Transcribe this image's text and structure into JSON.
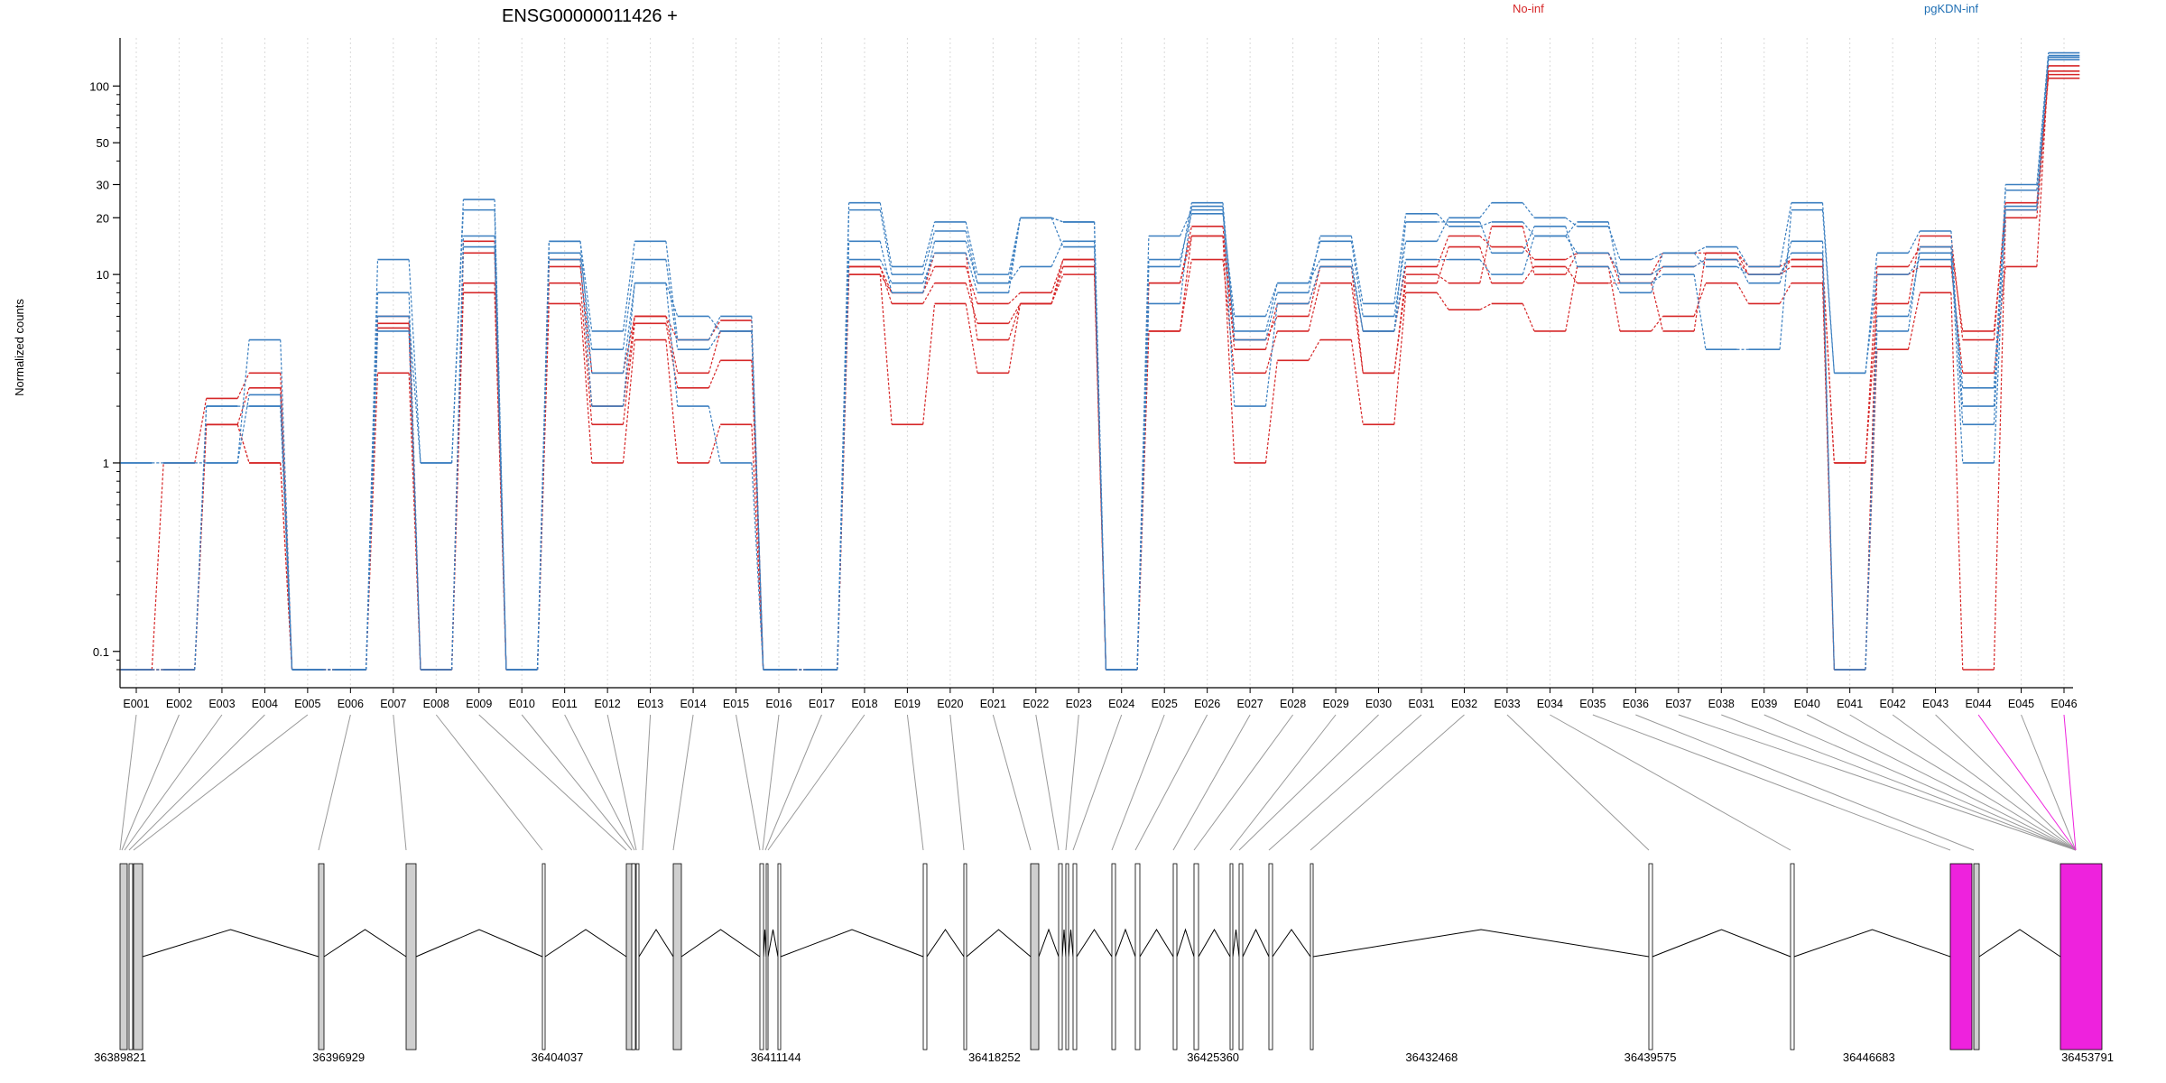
{
  "chart_data": {
    "type": "line",
    "title": "ENSG00000011426 +",
    "ylabel": "Normalized counts",
    "xlabel": "",
    "y_scale": "log",
    "ylim": [
      0.08,
      180
    ],
    "y_ticks": [
      {
        "value": 0.1,
        "label": "0.1"
      },
      {
        "value": 1,
        "label": "1"
      },
      {
        "value": 10,
        "label": "10"
      },
      {
        "value": 20,
        "label": "20"
      },
      {
        "value": 30,
        "label": "30"
      },
      {
        "value": 50,
        "label": "50"
      },
      {
        "value": 100,
        "label": "100"
      }
    ],
    "grid": "vertical-dotted",
    "legend_placement": "top",
    "categories": [
      "E001",
      "E002",
      "E003",
      "E004",
      "E005",
      "E006",
      "E007",
      "E008",
      "E009",
      "E010",
      "E011",
      "E012",
      "E013",
      "E014",
      "E015",
      "E016",
      "E017",
      "E018",
      "E019",
      "E020",
      "E021",
      "E022",
      "E023",
      "E024",
      "E025",
      "E026",
      "E027",
      "E028",
      "E029",
      "E030",
      "E031",
      "E032",
      "E033",
      "E034",
      "E035",
      "E036",
      "E037",
      "E038",
      "E039",
      "E040",
      "E041",
      "E042",
      "E043",
      "E044",
      "E045",
      "E046"
    ],
    "groups": [
      {
        "name": "No-inf",
        "color": "#d62728"
      },
      {
        "name": "pgKDN-inf",
        "color": "#3b7fc0"
      }
    ],
    "series": [
      {
        "group": "No-inf",
        "values": [
          0.08,
          1,
          2.2,
          3,
          0.08,
          0.08,
          5.2,
          0.08,
          15,
          0.08,
          11,
          3,
          6,
          4.5,
          5.7,
          0.08,
          0.08,
          10,
          8,
          11,
          7,
          8,
          12,
          0.08,
          9,
          16,
          4,
          7,
          11,
          5,
          11,
          16,
          14,
          12,
          13,
          10,
          13,
          13,
          11,
          12,
          1,
          11,
          14,
          5,
          22,
          120
        ]
      },
      {
        "group": "No-inf",
        "values": [
          0.08,
          0.08,
          1.6,
          2.5,
          0.08,
          0.08,
          6,
          0.08,
          13,
          0.08,
          9,
          1.6,
          5.5,
          2.5,
          3.5,
          0.08,
          0.08,
          11,
          7,
          9,
          5.5,
          7,
          11,
          0.08,
          5,
          12,
          3,
          5,
          9,
          3,
          9,
          14,
          9,
          11,
          9,
          9,
          11,
          12,
          10,
          11,
          0.08,
          10,
          11,
          3,
          11,
          128
        ]
      },
      {
        "group": "No-inf",
        "values": [
          0.08,
          0.08,
          1.6,
          1,
          0.08,
          0.08,
          3,
          0.08,
          9,
          0.08,
          7,
          1,
          4.5,
          1,
          1.6,
          0.08,
          0.08,
          10,
          1.6,
          7,
          3,
          7,
          10,
          0.08,
          5,
          16,
          1,
          3.5,
          4.5,
          1.6,
          8,
          6.5,
          7,
          5,
          11,
          5,
          6,
          9,
          7,
          9,
          0.08,
          4,
          8,
          0.08,
          20,
          115
        ]
      },
      {
        "group": "No-inf",
        "values": [
          0.08,
          0.08,
          1.6,
          1,
          0.08,
          0.08,
          5.5,
          0.08,
          8,
          0.08,
          12,
          2,
          6,
          3,
          5,
          0.08,
          0.08,
          11,
          8,
          13,
          4.5,
          7,
          12,
          0.08,
          9,
          18,
          4.5,
          6,
          11,
          3,
          10,
          9,
          18,
          10,
          13,
          9,
          5,
          13,
          10,
          12,
          1,
          7,
          16,
          4.5,
          24,
          110
        ]
      },
      {
        "group": "pgKDN-inf",
        "values": [
          1,
          1,
          1,
          4.5,
          0.08,
          0.08,
          6,
          1,
          22,
          0.08,
          13,
          4,
          12,
          4,
          5,
          0.08,
          0.08,
          22,
          10,
          17,
          9,
          20,
          19,
          0.08,
          16,
          22,
          5,
          9,
          15,
          6,
          15,
          20,
          24,
          20,
          18,
          12,
          13,
          14,
          11,
          24,
          3,
          13,
          17,
          1.6,
          30,
          150
        ]
      },
      {
        "group": "pgKDN-inf",
        "values": [
          1,
          1,
          1,
          2.3,
          0.08,
          0.08,
          12,
          1,
          25,
          0.08,
          15,
          5,
          15,
          4.5,
          6,
          0.08,
          0.08,
          24,
          11,
          19,
          10,
          20,
          19,
          0.08,
          11,
          24,
          4.5,
          8,
          16,
          7,
          21,
          18,
          19,
          16,
          19,
          9,
          10,
          4,
          4,
          22,
          3,
          10,
          12,
          2.5,
          28,
          145
        ]
      },
      {
        "group": "pgKDN-inf",
        "values": [
          0.08,
          0.08,
          2,
          2,
          0.08,
          0.08,
          8,
          0.08,
          16,
          0.08,
          15,
          3,
          9,
          6,
          5,
          0.08,
          0.08,
          12,
          9,
          13,
          8,
          20,
          14,
          0.08,
          12,
          21,
          6,
          9,
          12,
          5,
          19,
          19,
          13,
          18,
          11,
          8,
          13,
          11,
          10,
          13,
          0.08,
          5,
          14,
          1,
          22,
          138
        ]
      },
      {
        "group": "pgKDN-inf",
        "values": [
          0.08,
          0.08,
          2,
          2,
          0.08,
          0.08,
          5,
          0.08,
          14,
          0.08,
          12,
          2,
          9,
          2,
          1,
          0.08,
          0.08,
          15,
          8,
          15,
          9,
          11,
          15,
          0.08,
          7,
          23,
          2,
          7,
          11,
          5,
          12,
          12,
          10,
          16,
          13,
          10,
          11,
          12,
          9,
          15,
          0.08,
          6,
          13,
          2,
          23,
          142
        ]
      }
    ]
  },
  "transcript": {
    "coord_labels": [
      "36389821",
      "36396929",
      "36404037",
      "36411144",
      "36418252",
      "36425360",
      "36432468",
      "36439575",
      "36446683",
      "36453791"
    ],
    "highlight_color": "#ee22dd"
  }
}
